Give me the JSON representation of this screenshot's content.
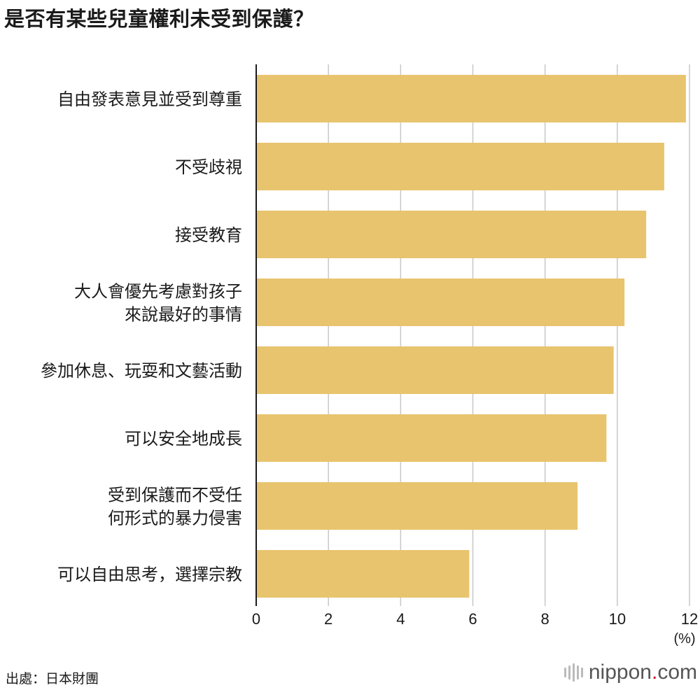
{
  "title": "是否有某些兒童權利未受到保護？",
  "source": "出處：日本財團",
  "brand": {
    "name": "nippon",
    "dot": ".",
    "tld": "com"
  },
  "chart_data": {
    "type": "bar",
    "orientation": "horizontal",
    "title": "是否有某些兒童權利未受到保護？",
    "categories": [
      [
        "自由發表意見並受到尊重"
      ],
      [
        "不受歧視"
      ],
      [
        "接受教育"
      ],
      [
        "大人會優先考慮對孩子",
        "來說最好的事情"
      ],
      [
        "參加休息、玩耍和文藝活動"
      ],
      [
        "可以安全地成長"
      ],
      [
        "受到保護而不受任",
        "何形式的暴力侵害"
      ],
      [
        "可以自由思考，選擇宗教"
      ]
    ],
    "values": [
      11.9,
      11.3,
      10.8,
      10.2,
      9.9,
      9.7,
      8.9,
      5.9
    ],
    "xlim": [
      0,
      12
    ],
    "xticks": [
      0,
      2,
      4,
      6,
      8,
      10,
      12
    ],
    "unit": "(%)",
    "bar_color": "#e8c46e",
    "grid": true
  }
}
